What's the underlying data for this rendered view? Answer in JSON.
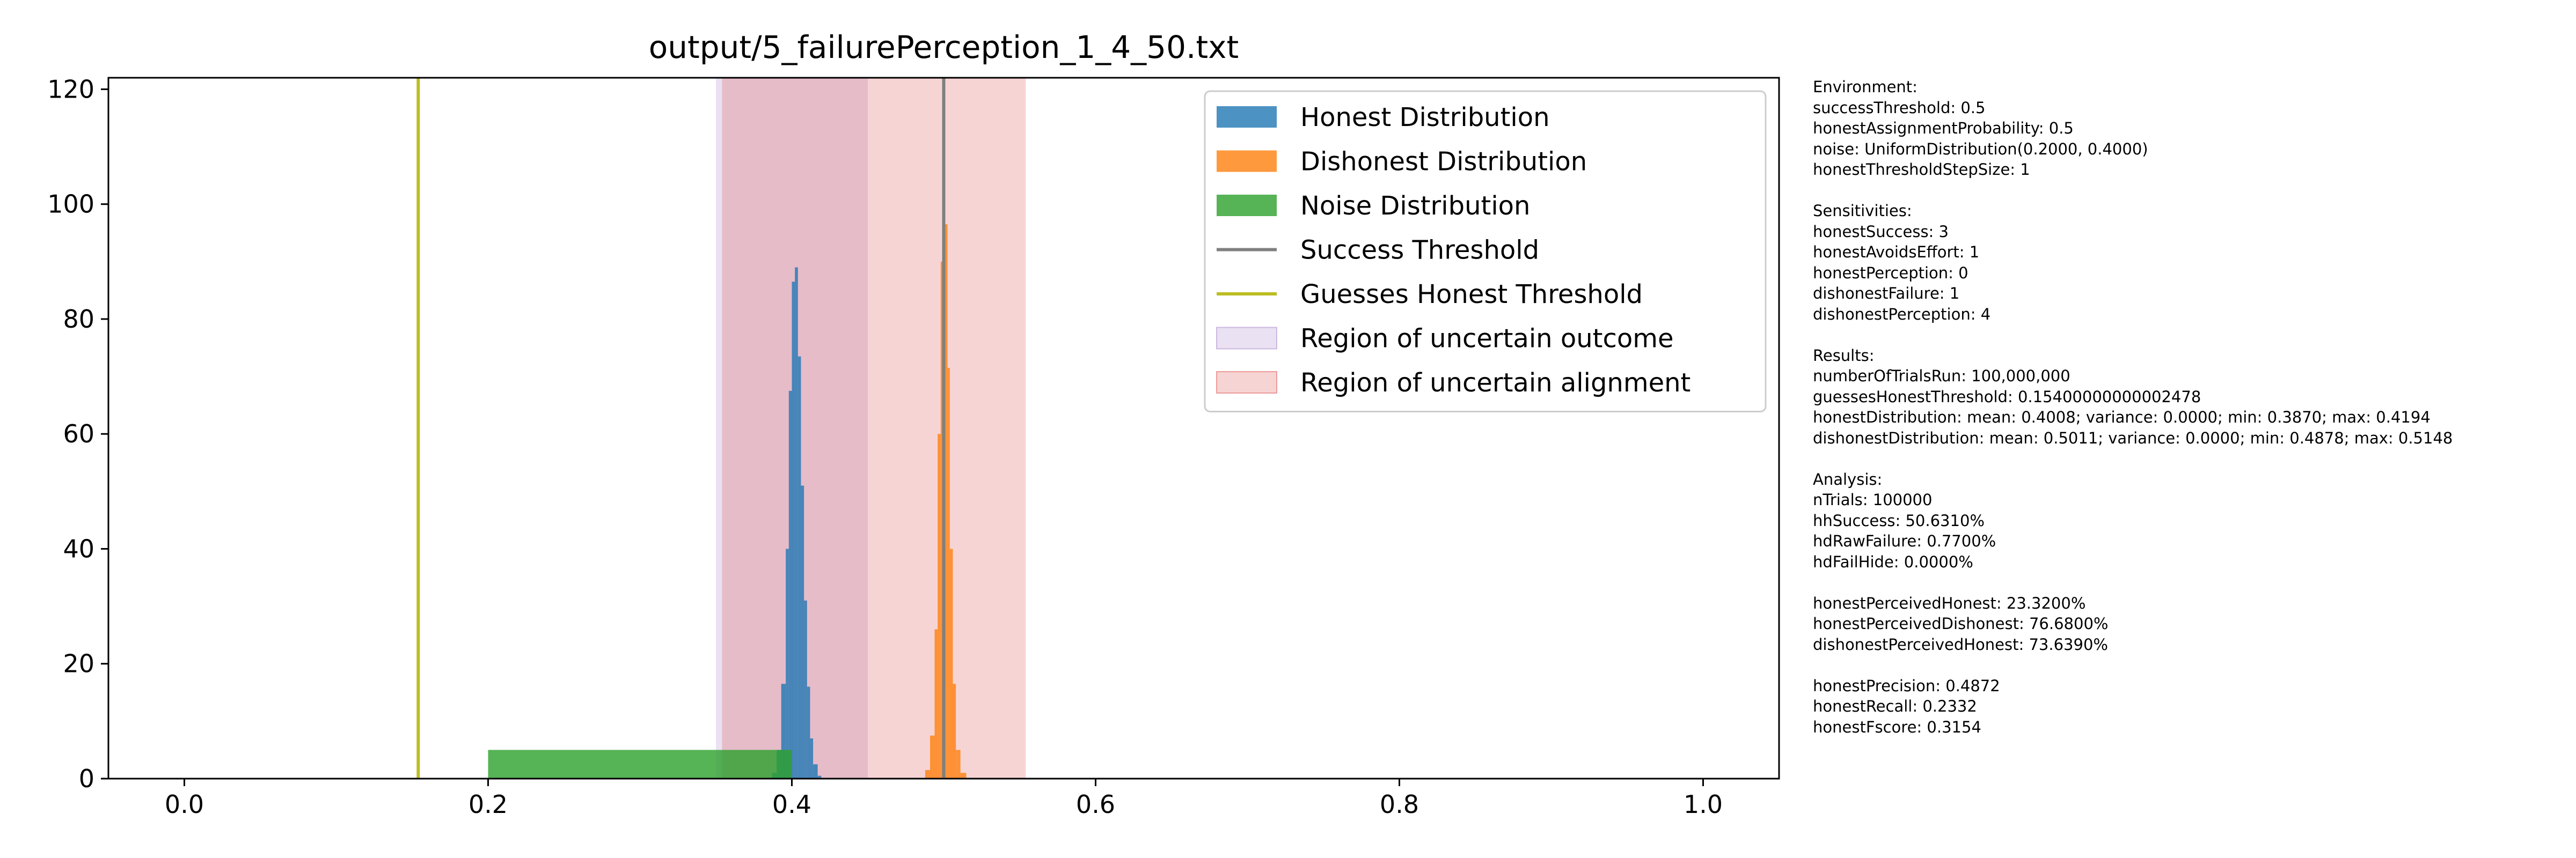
{
  "chart_data": {
    "type": "histogram",
    "title": "output/5_failurePerception_1_4_50.txt",
    "xlabel": "",
    "ylabel": "",
    "xlim": [
      -0.05,
      1.05
    ],
    "ylim": [
      0,
      122
    ],
    "xticks": [
      0.0,
      0.2,
      0.4,
      0.6,
      0.8,
      1.0
    ],
    "xtick_labels": [
      "0.0",
      "0.2",
      "0.4",
      "0.6",
      "0.8",
      "1.0"
    ],
    "yticks": [
      0,
      20,
      40,
      60,
      80,
      100,
      120
    ],
    "ytick_labels": [
      "0",
      "20",
      "40",
      "60",
      "80",
      "100",
      "120"
    ],
    "grid": false,
    "legend_position": "top-right",
    "legend": [
      {
        "label": "Honest Distribution",
        "kind": "patch",
        "color": "#1f77b4",
        "alpha": 0.8
      },
      {
        "label": "Dishonest Distribution",
        "kind": "patch",
        "color": "#ff7f0e",
        "alpha": 0.8
      },
      {
        "label": "Noise Distribution",
        "kind": "patch",
        "color": "#2ca02c",
        "alpha": 0.8
      },
      {
        "label": "Success Threshold",
        "kind": "line",
        "color": "#7f7f7f",
        "alpha": 1
      },
      {
        "label": "Guesses Honest Threshold",
        "kind": "line",
        "color": "#bcbd22",
        "alpha": 1
      },
      {
        "label": "Region of uncertain outcome",
        "kind": "patch",
        "color": "#9467bd",
        "alpha": 0.2
      },
      {
        "label": "Region of uncertain alignment",
        "kind": "patch",
        "color": "#d62728",
        "alpha": 0.2
      }
    ],
    "series": [
      {
        "name": "Honest Distribution",
        "type": "histogram",
        "color": "#1f77b4",
        "alpha": 0.8,
        "mean": 0.4008,
        "min": 0.387,
        "max": 0.4194,
        "peak_density": 93,
        "x": [
          0.387,
          0.39,
          0.393,
          0.396,
          0.398,
          0.4,
          0.402,
          0.404,
          0.406,
          0.408,
          0.41,
          0.412,
          0.414,
          0.417,
          0.4194
        ],
        "y": [
          0,
          2,
          8,
          25,
          55,
          80,
          93,
          85,
          62,
          40,
          22,
          10,
          4,
          1,
          0
        ]
      },
      {
        "name": "Dishonest Distribution",
        "type": "histogram",
        "color": "#ff7f0e",
        "alpha": 0.8,
        "mean": 0.5011,
        "min": 0.4878,
        "max": 0.5148,
        "peak_density": 105,
        "x": [
          0.4878,
          0.491,
          0.494,
          0.496,
          0.498,
          0.4995,
          0.501,
          0.5025,
          0.504,
          0.506,
          0.508,
          0.511,
          0.5148
        ],
        "y": [
          0,
          3,
          12,
          40,
          80,
          100,
          105,
          88,
          55,
          25,
          8,
          2,
          0
        ]
      },
      {
        "name": "Noise Distribution",
        "type": "histogram",
        "color": "#2ca02c",
        "alpha": 0.8,
        "x": [
          0.2,
          0.4
        ],
        "y": [
          5,
          5
        ]
      }
    ],
    "vlines": [
      {
        "name": "Success Threshold",
        "x": 0.5,
        "color": "#7f7f7f"
      },
      {
        "name": "Guesses Honest Threshold",
        "x": 0.1540000000002478,
        "color": "#bcbd22"
      }
    ],
    "regions": [
      {
        "name": "Region of uncertain outcome",
        "x": [
          0.35,
          0.45
        ],
        "color": "#9467bd",
        "alpha": 0.2
      },
      {
        "name": "Region of uncertain alignment",
        "x": [
          0.354,
          0.554
        ],
        "color": "#d62728",
        "alpha": 0.2
      }
    ]
  },
  "side_panel": [
    {
      "heading": "Environment:",
      "lines": [
        "successThreshold: 0.5",
        "honestAssignmentProbability: 0.5",
        "noise: UniformDistribution(0.2000, 0.4000)",
        "honestThresholdStepSize: 1"
      ]
    },
    {
      "heading": "Sensitivities:",
      "lines": [
        "honestSuccess: 3",
        "honestAvoidsEffort: 1",
        "honestPerception: 0",
        "dishonestFailure: 1",
        "dishonestPerception: 4"
      ]
    },
    {
      "heading": "Results:",
      "lines": [
        "numberOfTrialsRun: 100,000,000",
        "guessesHonestThreshold: 0.15400000000002478",
        "honestDistribution: mean: 0.4008; variance: 0.0000; min: 0.3870; max: 0.4194",
        "dishonestDistribution: mean: 0.5011; variance: 0.0000; min: 0.4878; max: 0.5148"
      ]
    },
    {
      "heading": "Analysis:",
      "lines": [
        "nTrials: 100000",
        "hhSuccess: 50.6310%",
        "hdRawFailure: 0.7700%",
        "hdFailHide: 0.0000%"
      ]
    },
    {
      "heading": "",
      "lines": [
        "honestPerceivedHonest: 23.3200%",
        "honestPerceivedDishonest: 76.6800%",
        "dishonestPerceivedHonest: 73.6390%"
      ]
    },
    {
      "heading": "",
      "lines": [
        "honestPrecision: 0.4872",
        "honestRecall: 0.2332",
        "honestFscore: 0.3154"
      ]
    }
  ]
}
